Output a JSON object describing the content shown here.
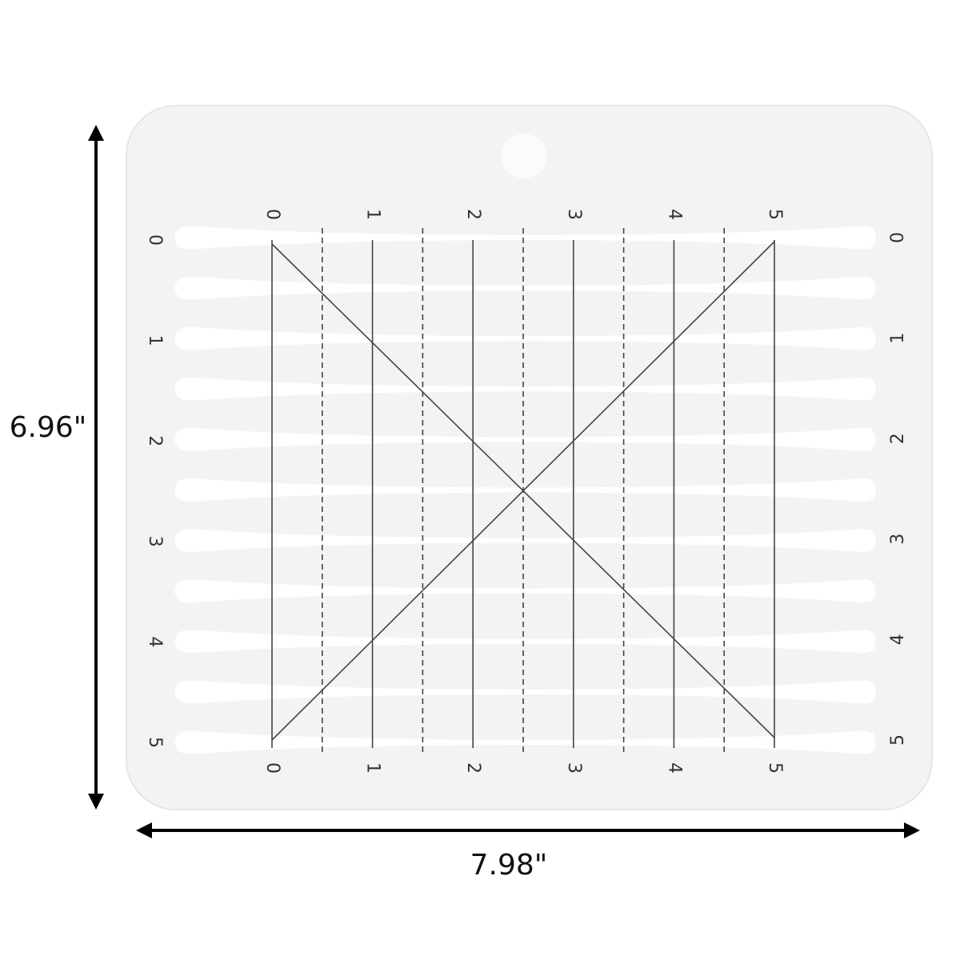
{
  "dimensions": {
    "height": "6.96\"",
    "width": "7.98\""
  },
  "ruler": {
    "top_labels": [
      "0",
      "1",
      "2",
      "3",
      "4",
      "5"
    ],
    "bottom_labels": [
      "0",
      "1",
      "2",
      "3",
      "4",
      "5"
    ],
    "left_labels": [
      "0",
      "1",
      "2",
      "3",
      "4",
      "5"
    ],
    "right_labels": [
      "0",
      "1",
      "2",
      "3",
      "4",
      "5"
    ]
  }
}
